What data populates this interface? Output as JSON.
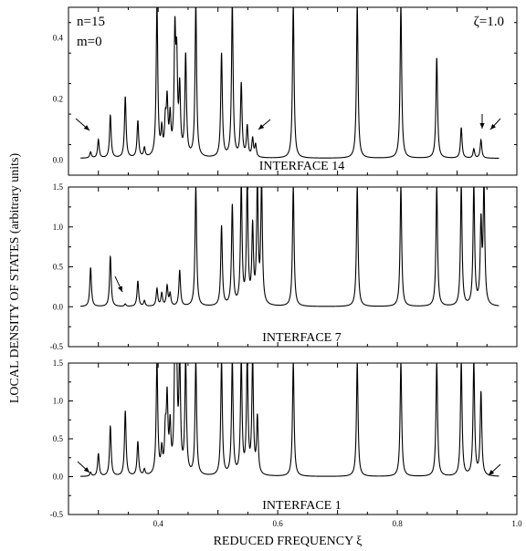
{
  "figure": {
    "ylabel": "LOCAL DENSITY OF STATES (arbitrary units)",
    "xlabel": "REDUCED FREQUENCY  ξ"
  },
  "chart_data": [
    {
      "type": "line",
      "panel_label": "INTERFACE  14",
      "annotations": [
        "n=15",
        "m=0",
        "ζ=1.0"
      ],
      "xlim": [
        0.25,
        1.0
      ],
      "ylim": [
        -0.05,
        0.5
      ],
      "x_ticks": [],
      "y_ticks": [
        "0.0",
        "0.2",
        "0.4"
      ],
      "y_tick_values": [
        0.0,
        0.2,
        0.4
      ],
      "baseline": 0.005,
      "peaks": [
        {
          "x": 0.287,
          "h": 0.02
        },
        {
          "x": 0.3,
          "h": 0.06
        },
        {
          "x": 0.32,
          "h": 0.14
        },
        {
          "x": 0.345,
          "h": 0.2
        },
        {
          "x": 0.366,
          "h": 0.12
        },
        {
          "x": 0.377,
          "h": 0.03
        },
        {
          "x": 0.398,
          "h": 0.5
        },
        {
          "x": 0.406,
          "h": 0.08
        },
        {
          "x": 0.412,
          "h": 0.1
        },
        {
          "x": 0.415,
          "h": 0.17
        },
        {
          "x": 0.42,
          "h": 0.12
        },
        {
          "x": 0.428,
          "h": 0.38
        },
        {
          "x": 0.431,
          "h": 0.28
        },
        {
          "x": 0.436,
          "h": 0.21
        },
        {
          "x": 0.446,
          "h": 0.33
        },
        {
          "x": 0.463,
          "h": 0.5
        },
        {
          "x": 0.506,
          "h": 0.34
        },
        {
          "x": 0.524,
          "h": 0.5
        },
        {
          "x": 0.539,
          "h": 0.24
        },
        {
          "x": 0.549,
          "h": 0.1
        },
        {
          "x": 0.558,
          "h": 0.06
        },
        {
          "x": 0.563,
          "h": 0.04
        },
        {
          "x": 0.626,
          "h": 0.5
        },
        {
          "x": 0.733,
          "h": 0.5
        },
        {
          "x": 0.806,
          "h": 0.5
        },
        {
          "x": 0.866,
          "h": 0.33
        },
        {
          "x": 0.907,
          "h": 0.1
        },
        {
          "x": 0.928,
          "h": 0.03
        },
        {
          "x": 0.94,
          "h": 0.06
        }
      ]
    },
    {
      "type": "line",
      "panel_label": "INTERFACE  7",
      "annotations": [],
      "xlim": [
        0.25,
        1.0
      ],
      "ylim": [
        -0.5,
        1.5
      ],
      "x_ticks": [],
      "y_ticks": [
        "-0.5",
        "0.0",
        "0.5",
        "1.0",
        "1.5"
      ],
      "y_tick_values": [
        -0.5,
        0.0,
        0.5,
        1.0,
        1.5
      ],
      "baseline": 0.0,
      "peaks": [
        {
          "x": 0.287,
          "h": 0.49
        },
        {
          "x": 0.32,
          "h": 0.63
        },
        {
          "x": 0.345,
          "h": 0.03
        },
        {
          "x": 0.366,
          "h": 0.32
        },
        {
          "x": 0.377,
          "h": 0.07
        },
        {
          "x": 0.398,
          "h": 0.22
        },
        {
          "x": 0.406,
          "h": 0.16
        },
        {
          "x": 0.415,
          "h": 0.25
        },
        {
          "x": 0.42,
          "h": 0.15
        },
        {
          "x": 0.436,
          "h": 0.45
        },
        {
          "x": 0.463,
          "h": 1.5
        },
        {
          "x": 0.506,
          "h": 1.0
        },
        {
          "x": 0.524,
          "h": 1.25
        },
        {
          "x": 0.539,
          "h": 1.5
        },
        {
          "x": 0.549,
          "h": 1.5
        },
        {
          "x": 0.558,
          "h": 0.95
        },
        {
          "x": 0.566,
          "h": 1.5
        },
        {
          "x": 0.573,
          "h": 1.5
        },
        {
          "x": 0.626,
          "h": 1.5
        },
        {
          "x": 0.733,
          "h": 1.5
        },
        {
          "x": 0.806,
          "h": 1.5
        },
        {
          "x": 0.866,
          "h": 1.5
        },
        {
          "x": 0.907,
          "h": 1.5
        },
        {
          "x": 0.928,
          "h": 1.5
        },
        {
          "x": 0.94,
          "h": 1.0
        },
        {
          "x": 0.945,
          "h": 1.5
        }
      ]
    },
    {
      "type": "line",
      "panel_label": "INTERFACE  1",
      "annotations": [],
      "xlim": [
        0.25,
        1.0
      ],
      "ylim": [
        -0.5,
        1.5
      ],
      "x_ticks": [
        "0.4",
        "0.6",
        "0.8",
        "1.0"
      ],
      "x_tick_values": [
        0.4,
        0.6,
        0.8,
        1.0
      ],
      "y_ticks": [
        "-0.5",
        "0.0",
        "0.5",
        "1.0",
        "1.5"
      ],
      "y_tick_values": [
        -0.5,
        0.0,
        0.5,
        1.0,
        1.5
      ],
      "baseline": 0.0,
      "peaks": [
        {
          "x": 0.287,
          "h": 0.05
        },
        {
          "x": 0.3,
          "h": 0.3
        },
        {
          "x": 0.32,
          "h": 0.66
        },
        {
          "x": 0.345,
          "h": 0.86
        },
        {
          "x": 0.366,
          "h": 0.45
        },
        {
          "x": 0.377,
          "h": 0.08
        },
        {
          "x": 0.398,
          "h": 1.5
        },
        {
          "x": 0.406,
          "h": 0.3
        },
        {
          "x": 0.412,
          "h": 0.5
        },
        {
          "x": 0.415,
          "h": 0.95
        },
        {
          "x": 0.42,
          "h": 0.6
        },
        {
          "x": 0.428,
          "h": 1.5
        },
        {
          "x": 0.431,
          "h": 1.1
        },
        {
          "x": 0.436,
          "h": 1.5
        },
        {
          "x": 0.446,
          "h": 1.5
        },
        {
          "x": 0.463,
          "h": 1.5
        },
        {
          "x": 0.506,
          "h": 1.5
        },
        {
          "x": 0.524,
          "h": 1.5
        },
        {
          "x": 0.539,
          "h": 1.5
        },
        {
          "x": 0.549,
          "h": 1.5
        },
        {
          "x": 0.558,
          "h": 1.5
        },
        {
          "x": 0.566,
          "h": 0.75
        },
        {
          "x": 0.626,
          "h": 1.5
        },
        {
          "x": 0.733,
          "h": 1.5
        },
        {
          "x": 0.806,
          "h": 1.5
        },
        {
          "x": 0.866,
          "h": 1.5
        },
        {
          "x": 0.907,
          "h": 1.5
        },
        {
          "x": 0.928,
          "h": 1.5
        },
        {
          "x": 0.94,
          "h": 1.1
        }
      ]
    }
  ]
}
